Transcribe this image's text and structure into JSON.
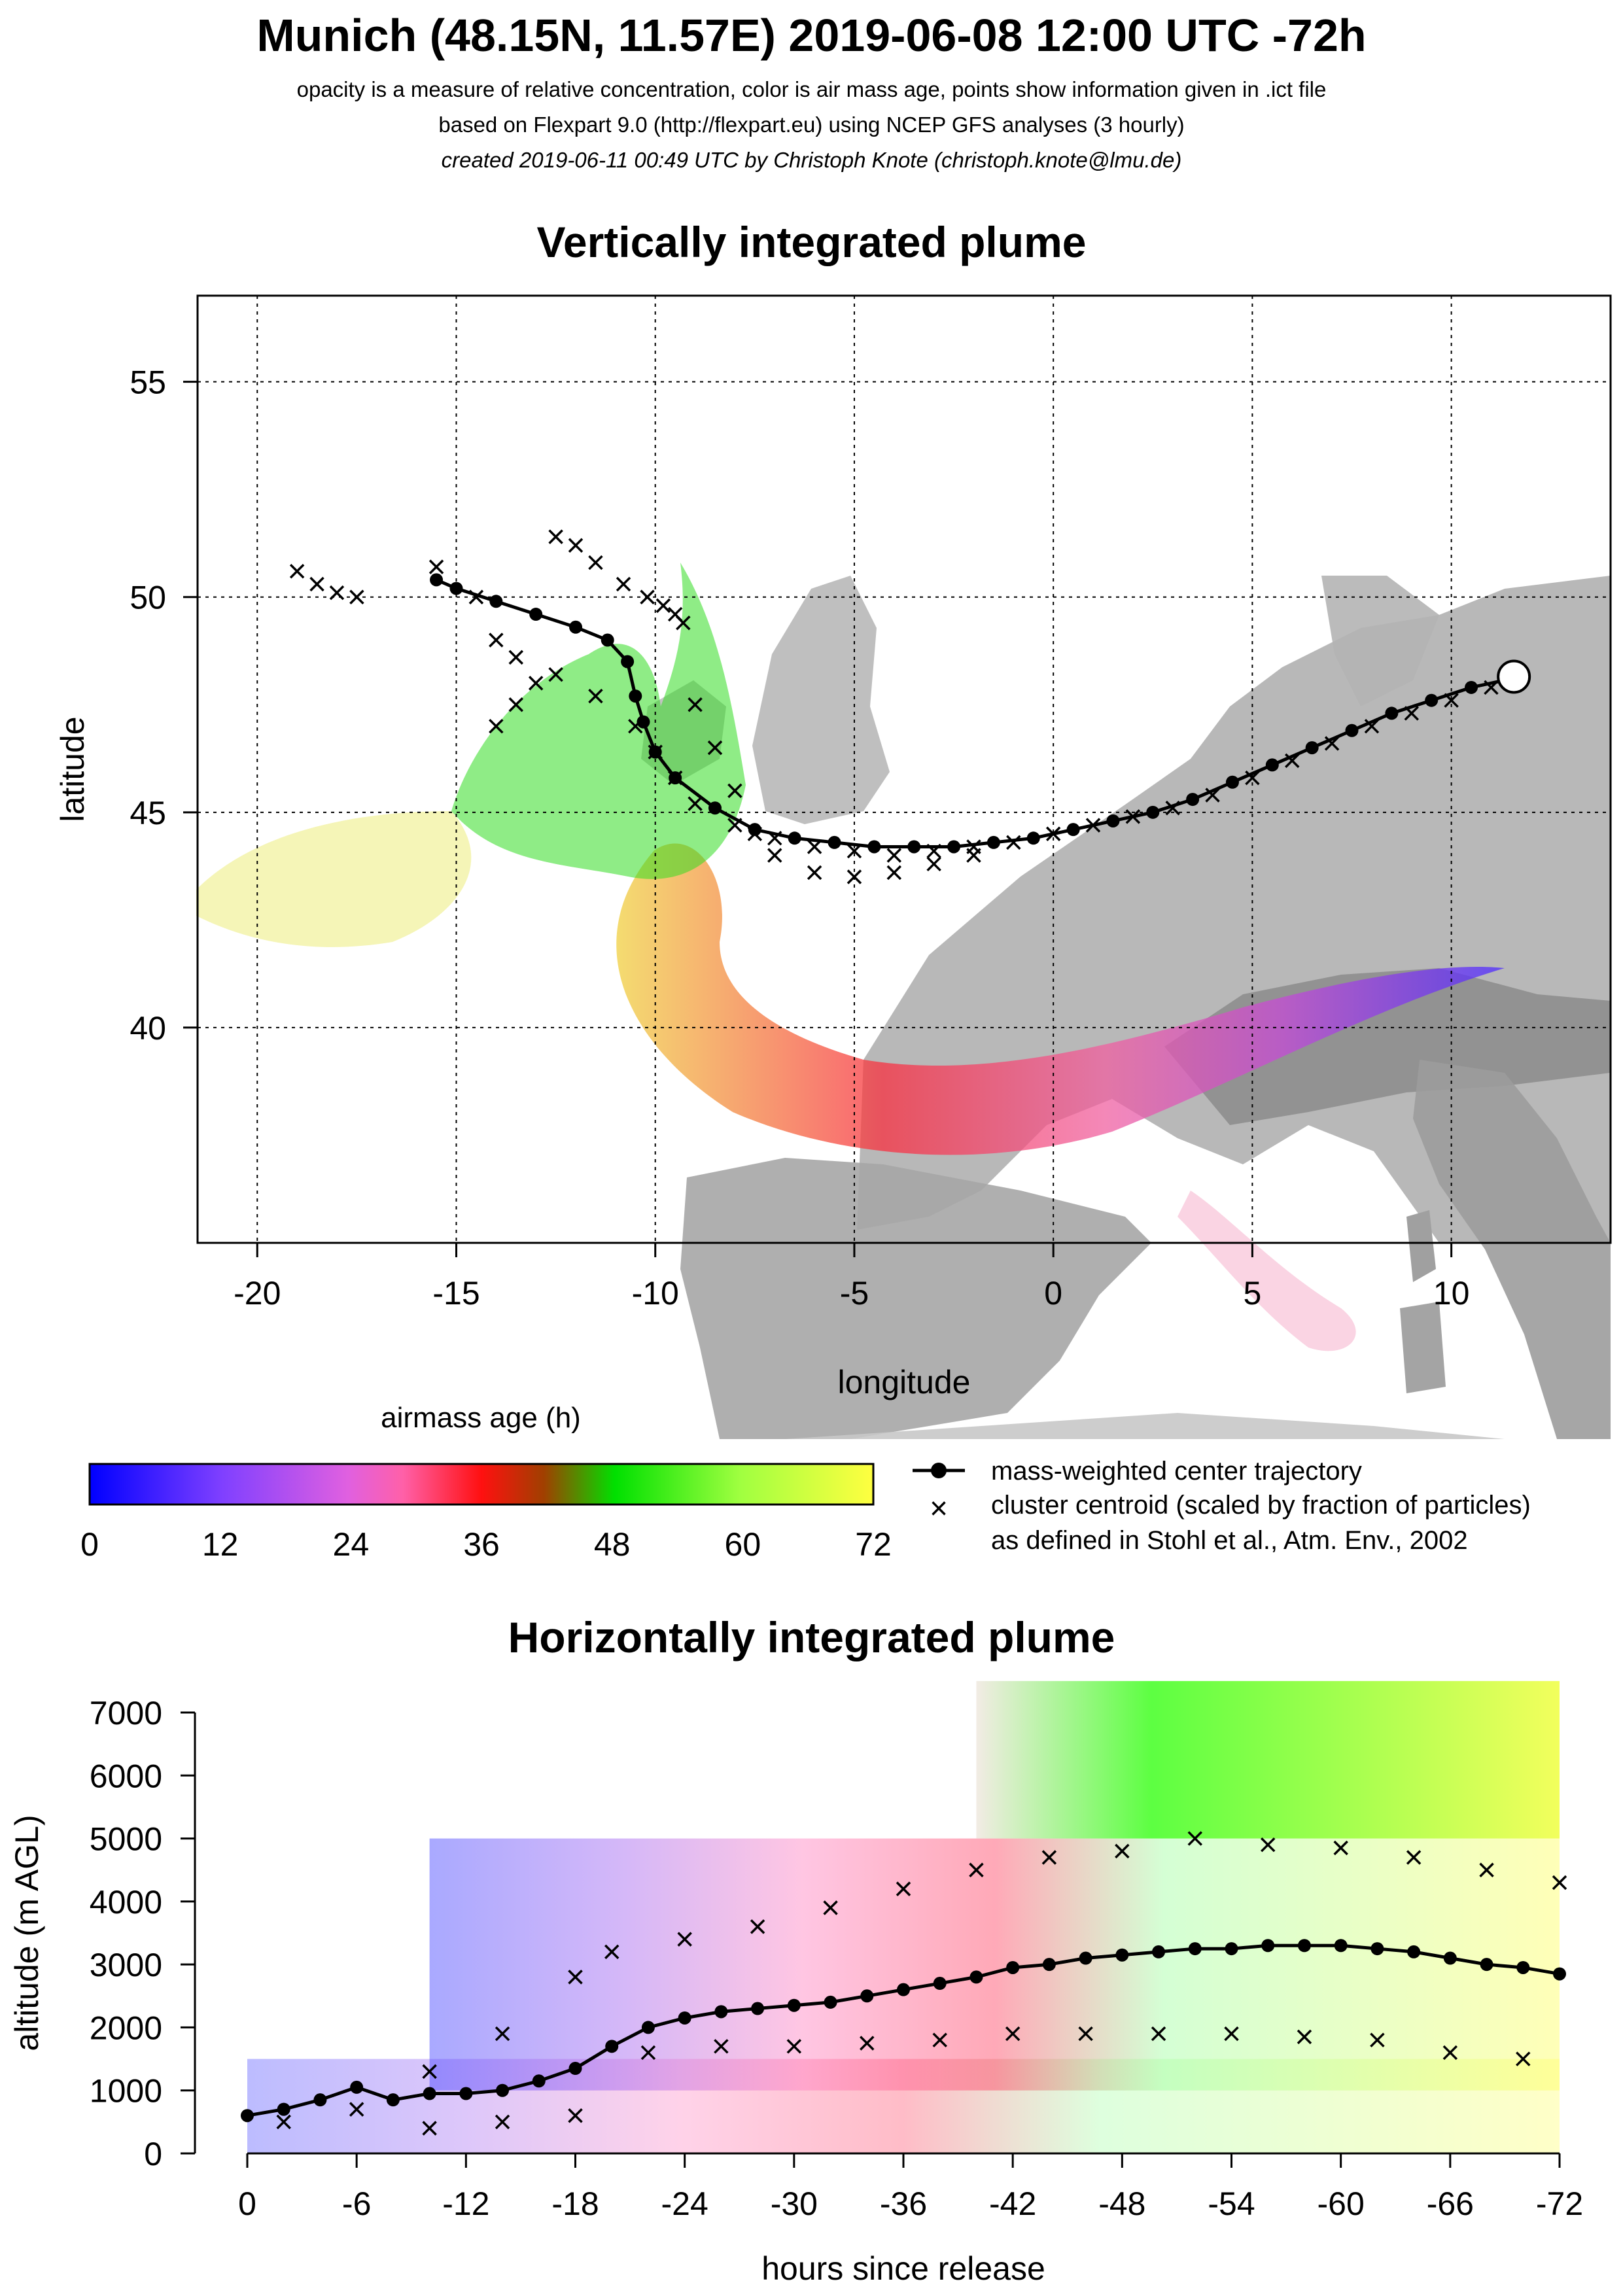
{
  "header": {
    "title": "Munich (48.15N, 11.57E) 2019-06-08 12:00 UTC -72h",
    "subtitle_1": "opacity is a measure of relative concentration, color is air mass age, points show information given in .ict file",
    "subtitle_2": "based on Flexpart 9.0 (http://flexpart.eu) using NCEP GFS analyses (3 hourly)",
    "credit": "created 2019-06-11 00:49 UTC by Christoph Knote (christoph.knote@lmu.de)"
  },
  "colors": {
    "age_0": "#0000ff",
    "age_12": "#8a2be2",
    "age_24": "#ff69b4",
    "age_36": "#ff0000",
    "age_48": "#00ff00",
    "age_72": "#ffff00",
    "terrain": "#9a9a9a",
    "trajectory": "#000000"
  },
  "legend": {
    "colorbar_title": "airmass age (h)",
    "colorbar_ticks": [
      "0",
      "12",
      "24",
      "36",
      "48",
      "60",
      "72"
    ],
    "trajectory_label": "mass-weighted center trajectory",
    "cluster_label_1": "cluster centroid (scaled by fraction of particles)",
    "cluster_label_2": "as defined in Stohl et al., Atm. Env., 2002"
  },
  "chart_data": [
    {
      "type": "scatter",
      "title": "Vertically integrated plume",
      "xlabel": "longitude",
      "ylabel": "latitude",
      "xlim": [
        -21.5,
        14
      ],
      "ylim": [
        35,
        57
      ],
      "xticks": [
        -20,
        -15,
        -10,
        -5,
        0,
        5,
        10
      ],
      "yticks": [
        40,
        45,
        50,
        55
      ],
      "grid": true,
      "release_point": {
        "lon": 11.57,
        "lat": 48.15
      },
      "series": [
        {
          "name": "mass-weighted center trajectory",
          "x": [
            11.5,
            10.5,
            9.5,
            8.5,
            7.5,
            6.5,
            5.5,
            4.5,
            3.5,
            2.5,
            1.5,
            0.5,
            -0.5,
            -1.5,
            -2.5,
            -3.5,
            -4.5,
            -5.5,
            -6.5,
            -7.5,
            -8.5,
            -9.5,
            -10.0,
            -10.3,
            -10.5,
            -10.7,
            -11.2,
            -12.0,
            -13.0,
            -14.0,
            -15.0,
            -15.5
          ],
          "y": [
            48.1,
            47.9,
            47.6,
            47.3,
            46.9,
            46.5,
            46.1,
            45.7,
            45.3,
            45.0,
            44.8,
            44.6,
            44.4,
            44.3,
            44.2,
            44.2,
            44.2,
            44.3,
            44.4,
            44.6,
            45.1,
            45.8,
            46.4,
            47.1,
            47.7,
            48.5,
            49.0,
            49.3,
            49.6,
            49.9,
            50.2,
            50.4
          ]
        },
        {
          "name": "cluster centroids",
          "x": [
            11.0,
            10.0,
            9.0,
            8.0,
            7.0,
            6.0,
            5.0,
            4.0,
            3.0,
            2.0,
            1.0,
            0.0,
            -1.0,
            -2.0,
            -3.0,
            -4.0,
            -5.0,
            -6.0,
            -7.0,
            -8.0,
            -9.0,
            -9.5,
            -10.0,
            -10.5,
            -11.5,
            -12.5,
            -13.5,
            -14.0,
            -14.5,
            -15.5,
            -9.3,
            -9.5,
            -9.8,
            -10.2,
            -10.8,
            -11.5,
            -12.0,
            -12.5,
            -13.0,
            -13.5,
            -14.0,
            -9.0,
            -8.5,
            -8.0,
            -7.5,
            -7.0,
            -6.0,
            -5.0,
            -4.0,
            -3.0,
            -2.0,
            -19.0,
            -18.5,
            -18.0,
            -17.5
          ],
          "y": [
            47.9,
            47.6,
            47.3,
            47.0,
            46.6,
            46.2,
            45.8,
            45.4,
            45.1,
            44.9,
            44.7,
            44.5,
            44.3,
            44.2,
            44.1,
            44.0,
            44.1,
            44.2,
            44.4,
            44.7,
            45.2,
            45.8,
            46.4,
            47.0,
            47.7,
            48.2,
            48.6,
            49.0,
            50.0,
            50.7,
            49.4,
            49.6,
            49.8,
            50.0,
            50.3,
            50.8,
            51.2,
            51.4,
            48.0,
            47.5,
            47.0,
            47.5,
            46.5,
            45.5,
            44.5,
            44.0,
            43.6,
            43.5,
            43.6,
            43.8,
            44.0,
            50.6,
            50.3,
            50.1,
            50.0
          ]
        }
      ]
    },
    {
      "type": "scatter",
      "title": "Horizontally integrated plume",
      "xlabel": "hours since release",
      "ylabel": "altitude (m AGL)",
      "xlim": [
        0,
        -72
      ],
      "ylim": [
        0,
        7000
      ],
      "xticks": [
        "0",
        "-6",
        "-12",
        "-18",
        "-24",
        "-30",
        "-36",
        "-42",
        "-48",
        "-54",
        "-60",
        "-66",
        "-72"
      ],
      "yticks": [
        "0",
        "1000",
        "2000",
        "3000",
        "4000",
        "5000",
        "6000",
        "7000"
      ],
      "series": [
        {
          "name": "mass-weighted center trajectory",
          "x": [
            0,
            -2,
            -4,
            -6,
            -8,
            -10,
            -12,
            -14,
            -16,
            -18,
            -20,
            -22,
            -24,
            -26,
            -28,
            -30,
            -32,
            -34,
            -36,
            -38,
            -40,
            -42,
            -44,
            -46,
            -48,
            -50,
            -52,
            -54,
            -56,
            -58,
            -60,
            -62,
            -64,
            -66,
            -68,
            -70,
            -72
          ],
          "y": [
            600,
            700,
            850,
            1050,
            850,
            950,
            950,
            1000,
            1150,
            1350,
            1700,
            2000,
            2150,
            2250,
            2300,
            2350,
            2400,
            2500,
            2600,
            2700,
            2800,
            2950,
            3000,
            3100,
            3150,
            3200,
            3250,
            3250,
            3300,
            3300,
            3300,
            3250,
            3200,
            3100,
            3000,
            2950,
            2850
          ]
        },
        {
          "name": "cluster centroids (upper)",
          "x": [
            -10,
            -14,
            -18,
            -20,
            -24,
            -28,
            -32,
            -36,
            -40,
            -44,
            -48,
            -52,
            -56,
            -60,
            -64,
            -68,
            -72
          ],
          "y": [
            1300,
            1900,
            2800,
            3200,
            3400,
            3600,
            3900,
            4200,
            4500,
            4700,
            4800,
            5000,
            4900,
            4850,
            4700,
            4500,
            4300
          ]
        },
        {
          "name": "cluster centroids (lower)",
          "x": [
            -2,
            -6,
            -10,
            -14,
            -18,
            -22,
            -26,
            -30,
            -34,
            -38,
            -42,
            -46,
            -50,
            -54,
            -58,
            -62,
            -66,
            -70
          ],
          "y": [
            500,
            700,
            400,
            500,
            600,
            1600,
            1700,
            1700,
            1750,
            1800,
            1900,
            1900,
            1900,
            1900,
            1850,
            1800,
            1600,
            1500
          ]
        }
      ]
    }
  ]
}
